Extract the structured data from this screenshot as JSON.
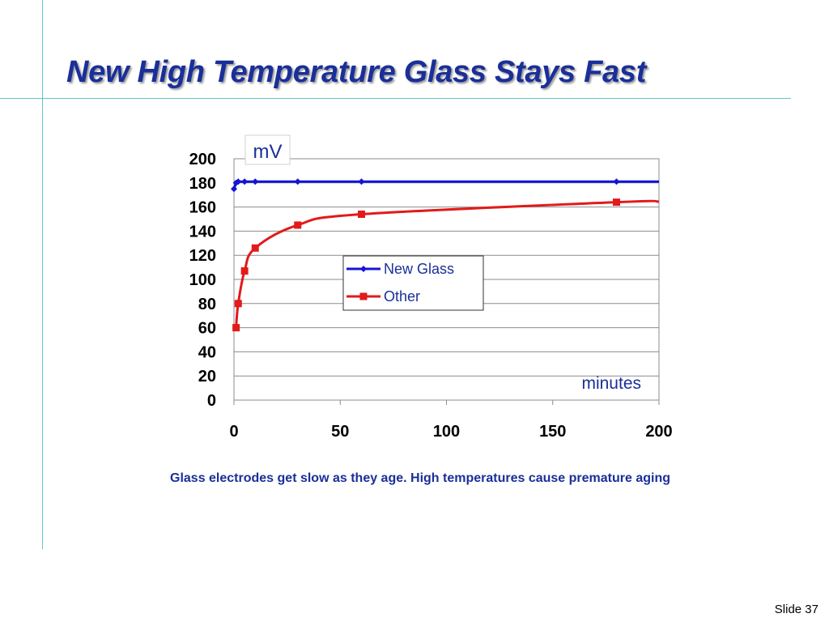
{
  "slide": {
    "title": "New High Temperature Glass Stays Fast",
    "caption": "Glass electrodes get slow as they age.  High temperatures cause premature aging",
    "slide_number": "Slide 37"
  },
  "colors": {
    "title": "#1a2f99",
    "rule": "#5cc7c9",
    "axis_label": "#1a2f99",
    "new_glass": "#1414d6",
    "other": "#e21a1a"
  },
  "chart_data": {
    "type": "line",
    "title": "",
    "ylabel": "mV",
    "xlabel": "minutes",
    "xlim": [
      0,
      200
    ],
    "ylim": [
      0,
      200
    ],
    "x_ticks": [
      0,
      50,
      100,
      150,
      200
    ],
    "y_ticks": [
      0,
      20,
      40,
      60,
      80,
      100,
      120,
      140,
      160,
      180,
      200
    ],
    "grid": "horizontal",
    "legend_position": "center",
    "series": [
      {
        "name": "New Glass",
        "marker": "diamond",
        "points": [
          [
            0,
            175
          ],
          [
            1,
            180
          ],
          [
            2,
            181
          ],
          [
            5,
            181
          ],
          [
            10,
            181
          ],
          [
            30,
            181
          ],
          [
            60,
            181
          ],
          [
            180,
            181
          ],
          [
            200,
            181
          ]
        ],
        "markers": [
          [
            0,
            175
          ],
          [
            1,
            180
          ],
          [
            2,
            181
          ],
          [
            5,
            181
          ],
          [
            10,
            181
          ],
          [
            30,
            181
          ],
          [
            60,
            181
          ],
          [
            180,
            181
          ]
        ]
      },
      {
        "name": "Other",
        "marker": "square",
        "points": [
          [
            1,
            60
          ],
          [
            2,
            80
          ],
          [
            5,
            107
          ],
          [
            10,
            126
          ],
          [
            30,
            145
          ],
          [
            60,
            154
          ],
          [
            180,
            164
          ],
          [
            200,
            164.5
          ]
        ],
        "markers": [
          [
            1,
            60
          ],
          [
            2,
            80
          ],
          [
            5,
            107
          ],
          [
            10,
            126
          ],
          [
            30,
            145
          ],
          [
            60,
            154
          ],
          [
            180,
            164
          ]
        ]
      }
    ]
  }
}
